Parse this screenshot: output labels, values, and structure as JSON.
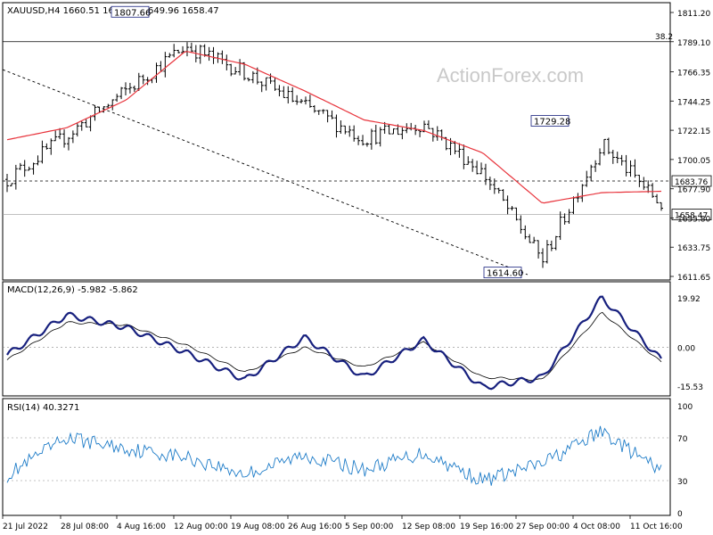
{
  "colors": {
    "background": "#ffffff",
    "price_line": "#000000",
    "ma_line": "#e8343c",
    "macd_line": "#17207e",
    "macd_signal": "#000000",
    "rsi_line": "#1e7cc8",
    "dotted": "#000000",
    "watermark": "#c9c9c9"
  },
  "watermark": "ActionForex.com",
  "price_panel": {
    "header": "XAUUSD,H4  1660.51 1660.54 1649.96 1658.47",
    "y_ticks": [
      "1811.20",
      "1789.10",
      "1766.35",
      "1744.25",
      "1722.15",
      "1700.05",
      "1677.90",
      "1655.80",
      "1633.75",
      "1611.65"
    ],
    "fib_label": "38.2",
    "annotations": [
      {
        "text": "1807.66"
      },
      {
        "text": "1729.28"
      },
      {
        "text": "1614.60"
      }
    ],
    "level_tags": [
      {
        "text": "1683.76"
      },
      {
        "text": "1658.47"
      }
    ]
  },
  "macd_panel": {
    "header": "MACD(12,26,9) -5.982 -5.862",
    "y_ticks": [
      "19.92",
      "0.00",
      "-15.53"
    ]
  },
  "rsi_panel": {
    "header": "RSI(14) 40.3271",
    "y_ticks": [
      "100",
      "70",
      "30",
      "0"
    ]
  },
  "x_ticks": [
    "21 Jul 2022",
    "28 Jul 08:00",
    "4 Aug 16:00",
    "12 Aug 00:00",
    "19 Aug 08:00",
    "26 Aug 16:00",
    "5 Sep 00:00",
    "12 Sep 08:00",
    "19 Sep 16:00",
    "27 Sep 00:00",
    "4 Oct 08:00",
    "11 Oct 16:00"
  ],
  "chart_data": [
    {
      "type": "line",
      "title": "XAUUSD,H4",
      "ylim": [
        1611.65,
        1811.2
      ],
      "categories": [
        "21 Jul 2022",
        "28 Jul 08:00",
        "4 Aug 16:00",
        "12 Aug 00:00",
        "19 Aug 08:00",
        "26 Aug 16:00",
        "5 Sep 00:00",
        "12 Sep 08:00",
        "19 Sep 16:00",
        "27 Sep 00:00",
        "4 Oct 08:00",
        "11 Oct 16:00"
      ],
      "series": [
        {
          "values": [
            1685,
            1718,
            1752,
            1786,
            1766,
            1740,
            1716,
            1727,
            1690,
            1624,
            1712,
            1666
          ]
        },
        {
          "values": [
            1715,
            1724,
            1745,
            1782,
            1772,
            1752,
            1730,
            1722,
            1705,
            1667,
            1675,
            1676
          ]
        }
      ],
      "horizontal_levels": [
        1789.1,
        1683.76,
        1658.47
      ],
      "annotations": [
        1807.66,
        1729.28,
        1614.6
      ]
    },
    {
      "type": "line",
      "title": "MACD(12,26,9)",
      "ylim": [
        -18,
        22
      ],
      "categories": [
        "21 Jul 2022",
        "28 Jul 08:00",
        "4 Aug 16:00",
        "12 Aug 00:00",
        "19 Aug 08:00",
        "26 Aug 16:00",
        "5 Sep 00:00",
        "12 Sep 08:00",
        "19 Sep 16:00",
        "27 Sep 00:00",
        "4 Oct 08:00",
        "11 Oct 16:00"
      ],
      "series": [
        {
          "values": [
            -3,
            13,
            8,
            -2,
            -13,
            4,
            -12,
            3,
            -16,
            -12,
            20,
            -5
          ]
        },
        {
          "values": [
            -5,
            10,
            9,
            1,
            -10,
            0,
            -8,
            2,
            -12,
            -13,
            14,
            -6
          ]
        }
      ],
      "horizontal_levels": [
        0
      ]
    },
    {
      "type": "line",
      "title": "RSI(14)",
      "ylim": [
        0,
        100
      ],
      "categories": [
        "21 Jul 2022",
        "28 Jul 08:00",
        "4 Aug 16:00",
        "12 Aug 00:00",
        "19 Aug 08:00",
        "26 Aug 16:00",
        "5 Sep 00:00",
        "12 Sep 08:00",
        "19 Sep 16:00",
        "27 Sep 00:00",
        "4 Oct 08:00",
        "11 Oct 16:00"
      ],
      "series": [
        {
          "values": [
            35,
            70,
            60,
            52,
            36,
            54,
            40,
            56,
            30,
            46,
            76,
            38
          ]
        }
      ],
      "horizontal_levels": [
        70,
        30
      ]
    }
  ]
}
